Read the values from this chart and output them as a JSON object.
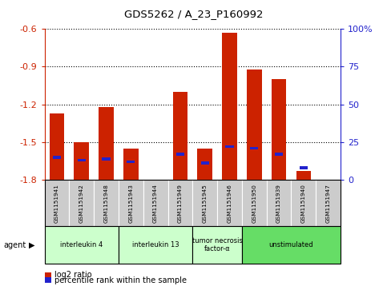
{
  "title": "GDS5262 / A_23_P160992",
  "samples": [
    "GSM1151941",
    "GSM1151942",
    "GSM1151948",
    "GSM1151943",
    "GSM1151944",
    "GSM1151949",
    "GSM1151945",
    "GSM1151946",
    "GSM1151950",
    "GSM1151939",
    "GSM1151940",
    "GSM1151947"
  ],
  "log2_values": [
    -1.27,
    -1.5,
    -1.22,
    -1.55,
    -1.8,
    -1.1,
    -1.55,
    -0.63,
    -0.92,
    -1.0,
    -1.73,
    -1.8
  ],
  "pct_values": [
    15,
    13,
    14,
    12,
    0,
    17,
    11,
    22,
    21,
    17,
    8,
    0
  ],
  "bar_base": -1.8,
  "ylim": [
    -1.8,
    -0.6
  ],
  "yticks": [
    -1.8,
    -1.5,
    -1.2,
    -0.9,
    -0.6
  ],
  "ytick_labels": [
    "-1.8",
    "-1.5",
    "-1.2",
    "-0.9",
    "-0.6"
  ],
  "pct_ylim": [
    0,
    100
  ],
  "pct_yticks": [
    0,
    25,
    50,
    75,
    100
  ],
  "pct_yticklabels": [
    "0",
    "25",
    "50",
    "75",
    "100%"
  ],
  "groups": [
    {
      "label": "interleukin 4",
      "indices": [
        0,
        1,
        2
      ],
      "color": "#ccffcc"
    },
    {
      "label": "interleukin 13",
      "indices": [
        3,
        4,
        5
      ],
      "color": "#ccffcc"
    },
    {
      "label": "tumor necrosis\nfactor-α",
      "indices": [
        6,
        7
      ],
      "color": "#ccffcc"
    },
    {
      "label": "unstimulated",
      "indices": [
        8,
        9,
        10,
        11
      ],
      "color": "#66dd66"
    }
  ],
  "bar_color_red": "#cc2200",
  "bar_color_blue": "#2222cc",
  "axis_color_left": "#cc2200",
  "axis_color_right": "#2222cc",
  "sample_bg": "#cccccc",
  "plot_bg": "#ffffff",
  "agent_text": "agent",
  "legend_red": "log2 ratio",
  "legend_blue": "percentile rank within the sample",
  "bar_width": 0.6
}
